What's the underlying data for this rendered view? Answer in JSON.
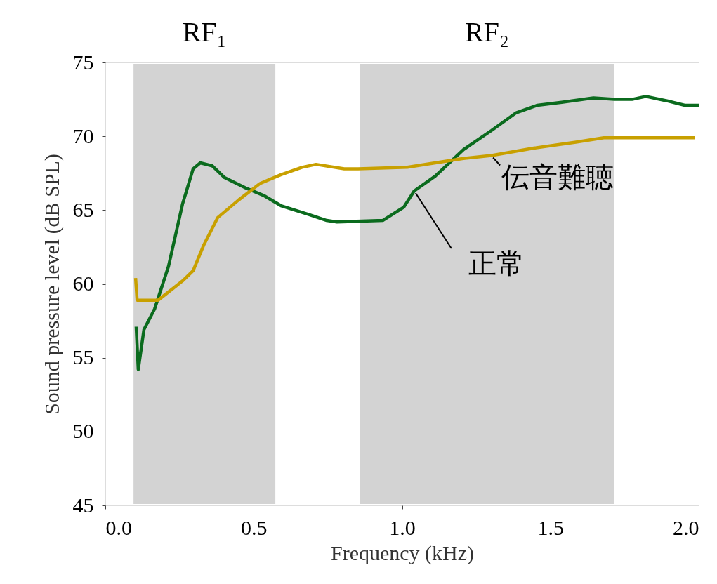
{
  "chart_data": {
    "type": "line",
    "xlabel": "Frequency (kHz)",
    "ylabel": "Sound pressure level (dB SPL)",
    "xlim": [
      0,
      2
    ],
    "ylim": [
      45,
      75
    ],
    "xticks": [
      {
        "value": 0,
        "label": "0.0"
      },
      {
        "value": 0.5,
        "label": "0.5"
      },
      {
        "value": 1,
        "label": "1.0"
      },
      {
        "value": 1.5,
        "label": "1.5"
      },
      {
        "value": 2,
        "label": "2.0"
      }
    ],
    "yticks": [
      45,
      50,
      55,
      60,
      65,
      70,
      75
    ],
    "grid": false,
    "marker": "none",
    "line_style": "solid",
    "bands": [
      {
        "axis": "x",
        "from": 0.095,
        "to": 0.573,
        "label": "RF₁",
        "color": "#d3d3d3"
      },
      {
        "axis": "x",
        "from": 0.857,
        "to": 1.716,
        "label": "RF₂",
        "color": "#d3d3d3"
      }
    ],
    "series": [
      {
        "name": "正常",
        "color": "#0b6b1e",
        "x": [
          0.104,
          0.111,
          0.13,
          0.166,
          0.213,
          0.26,
          0.296,
          0.32,
          0.36,
          0.402,
          0.473,
          0.533,
          0.592,
          0.686,
          0.746,
          0.781,
          0.935,
          1.006,
          1.041,
          1.112,
          1.207,
          1.302,
          1.385,
          1.456,
          1.538,
          1.645,
          1.716,
          1.775,
          1.822,
          1.893,
          1.953,
          2.0
        ],
        "values": [
          57.1,
          54.2,
          56.9,
          58.3,
          61.2,
          65.4,
          67.8,
          68.2,
          68.0,
          67.2,
          66.5,
          66.0,
          65.3,
          64.7,
          64.3,
          64.2,
          64.3,
          65.2,
          66.3,
          67.3,
          69.1,
          70.4,
          71.6,
          72.1,
          72.3,
          72.6,
          72.5,
          72.5,
          72.7,
          72.4,
          72.1,
          72.1
        ]
      },
      {
        "name": "伝音難聴",
        "color": "#c8a000",
        "x": [
          0.102,
          0.107,
          0.178,
          0.26,
          0.296,
          0.331,
          0.379,
          0.45,
          0.521,
          0.592,
          0.663,
          0.71,
          0.805,
          0.852,
          1.018,
          1.112,
          1.207,
          1.302,
          1.444,
          1.586,
          1.68,
          1.846,
          1.988
        ],
        "values": [
          60.4,
          58.9,
          58.9,
          60.2,
          60.9,
          62.6,
          64.5,
          65.7,
          66.8,
          67.4,
          67.9,
          68.1,
          67.8,
          67.8,
          67.9,
          68.2,
          68.5,
          68.7,
          69.2,
          69.6,
          69.9,
          69.9,
          69.9
        ]
      }
    ]
  }
}
